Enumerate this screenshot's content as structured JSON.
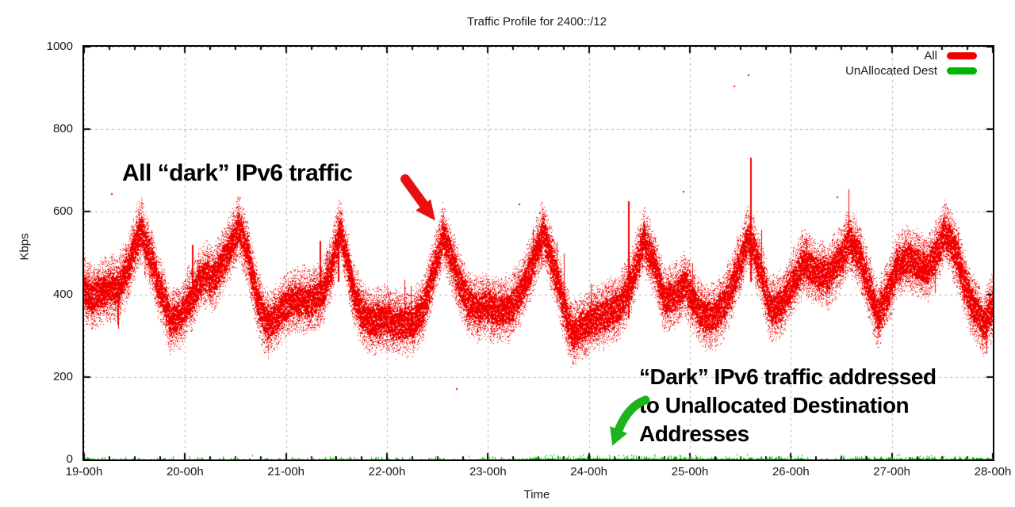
{
  "chart": {
    "title": "Traffic Profile for 2400::/12",
    "xlabel": "Time",
    "ylabel": "Kbps"
  },
  "legend": {
    "items": [
      {
        "label": "All",
        "color": "#f10000"
      },
      {
        "label": "UnAllocated Dest",
        "color": "#00b400"
      }
    ]
  },
  "annotations": {
    "all_traffic": {
      "text": "All “dark” IPv6 traffic",
      "arrow_color": "#e81010"
    },
    "unallocated": {
      "line1": "“Dark” IPv6 traffic addressed",
      "line2": "to Unallocated Destination",
      "line3": "Addresses",
      "arrow_color": "#1cb41c"
    }
  },
  "chart_data": {
    "type": "scatter",
    "title": "Traffic Profile for 2400::/12",
    "xlabel": "Time",
    "ylabel": "Kbps",
    "x_unit": "hours",
    "xlim": [
      19,
      28
    ],
    "ylim": [
      0,
      1000
    ],
    "x_tick_values": [
      19,
      20,
      21,
      22,
      23,
      24,
      25,
      26,
      27,
      28
    ],
    "x_tick_labels": [
      "19-00h",
      "20-00h",
      "21-00h",
      "22-00h",
      "23-00h",
      "24-00h",
      "25-00h",
      "26-00h",
      "27-00h",
      "28-00h"
    ],
    "y_tick_values": [
      0,
      200,
      400,
      600,
      800,
      1000
    ],
    "minor_x_tick_interval": 0.25,
    "grid": {
      "style": "dashed",
      "color": "#b3b3b3"
    },
    "legend_position": "top-right",
    "series": [
      {
        "name": "All",
        "color": "#f10000",
        "style": "dense-dot-band",
        "band_core_halfwidth_kbps": 45,
        "band_max_halfwidth_kbps": 85,
        "center_keypoints": [
          [
            19.0,
            410
          ],
          [
            19.08,
            393
          ],
          [
            19.15,
            405
          ],
          [
            19.25,
            420
          ],
          [
            19.33,
            415
          ],
          [
            19.42,
            460
          ],
          [
            19.5,
            520
          ],
          [
            19.56,
            555
          ],
          [
            19.65,
            490
          ],
          [
            19.75,
            415
          ],
          [
            19.85,
            335
          ],
          [
            19.95,
            350
          ],
          [
            20.05,
            390
          ],
          [
            20.13,
            432
          ],
          [
            20.2,
            445
          ],
          [
            20.28,
            438
          ],
          [
            20.36,
            472
          ],
          [
            20.45,
            520
          ],
          [
            20.53,
            565
          ],
          [
            20.62,
            500
          ],
          [
            20.7,
            398
          ],
          [
            20.78,
            338
          ],
          [
            20.85,
            332
          ],
          [
            20.95,
            362
          ],
          [
            21.05,
            385
          ],
          [
            21.15,
            390
          ],
          [
            21.25,
            385
          ],
          [
            21.35,
            400
          ],
          [
            21.45,
            468
          ],
          [
            21.53,
            562
          ],
          [
            21.6,
            480
          ],
          [
            21.68,
            390
          ],
          [
            21.76,
            350
          ],
          [
            21.85,
            335
          ],
          [
            21.95,
            340
          ],
          [
            22.05,
            335
          ],
          [
            22.15,
            330
          ],
          [
            22.25,
            336
          ],
          [
            22.35,
            365
          ],
          [
            22.45,
            448
          ],
          [
            22.55,
            545
          ],
          [
            22.63,
            492
          ],
          [
            22.72,
            420
          ],
          [
            22.8,
            382
          ],
          [
            22.9,
            365
          ],
          [
            23.0,
            372
          ],
          [
            23.1,
            360
          ],
          [
            23.2,
            370
          ],
          [
            23.3,
            392
          ],
          [
            23.4,
            450
          ],
          [
            23.54,
            552
          ],
          [
            23.65,
            468
          ],
          [
            23.75,
            368
          ],
          [
            23.83,
            302
          ],
          [
            23.92,
            322
          ],
          [
            24.0,
            332
          ],
          [
            24.1,
            346
          ],
          [
            24.2,
            360
          ],
          [
            24.3,
            372
          ],
          [
            24.42,
            432
          ],
          [
            24.54,
            538
          ],
          [
            24.65,
            470
          ],
          [
            24.75,
            382
          ],
          [
            24.85,
            402
          ],
          [
            24.95,
            425
          ],
          [
            25.05,
            372
          ],
          [
            25.15,
            346
          ],
          [
            25.25,
            352
          ],
          [
            25.35,
            382
          ],
          [
            25.45,
            450
          ],
          [
            25.58,
            540
          ],
          [
            25.68,
            470
          ],
          [
            25.8,
            362
          ],
          [
            25.9,
            372
          ],
          [
            26.0,
            422
          ],
          [
            26.13,
            480
          ],
          [
            26.25,
            455
          ],
          [
            26.35,
            442
          ],
          [
            26.45,
            470
          ],
          [
            26.58,
            530
          ],
          [
            26.7,
            478
          ],
          [
            26.85,
            350
          ],
          [
            26.95,
            400
          ],
          [
            27.05,
            468
          ],
          [
            27.15,
            488
          ],
          [
            27.25,
            475
          ],
          [
            27.35,
            465
          ],
          [
            27.45,
            508
          ],
          [
            27.52,
            552
          ],
          [
            27.62,
            510
          ],
          [
            27.72,
            425
          ],
          [
            27.82,
            362
          ],
          [
            27.92,
            332
          ],
          [
            28.0,
            372
          ]
        ],
        "spikes": [
          [
            20.07,
            400,
            520
          ],
          [
            21.33,
            400,
            530
          ],
          [
            21.51,
            430,
            545
          ],
          [
            24.39,
            340,
            625
          ],
          [
            25.6,
            430,
            732
          ]
        ],
        "outliers": [
          [
            19.27,
            645
          ],
          [
            22.68,
            172
          ],
          [
            23.3,
            620
          ],
          [
            24.93,
            650
          ],
          [
            25.43,
            905
          ],
          [
            25.57,
            933
          ],
          [
            26.45,
            638
          ]
        ]
      },
      {
        "name": "UnAllocated Dest",
        "color": "#00b400",
        "style": "baseline-spikes",
        "value_range_kbps": [
          0,
          15
        ],
        "dense_intervals": [
          [
            23.3,
            26.2
          ],
          [
            26.5,
            28.0
          ]
        ]
      }
    ]
  }
}
